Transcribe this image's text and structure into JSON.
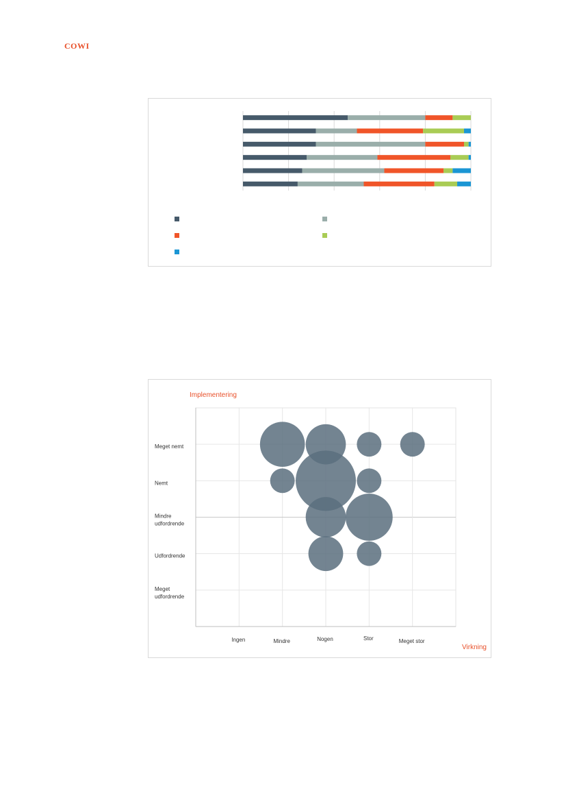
{
  "logo": {
    "text": "COWI",
    "color": "#e8502a"
  },
  "bar_chart": {
    "chart_data": {
      "type": "bar",
      "orientation": "horizontal",
      "stacked": true,
      "percent_stacked": true,
      "xlim": [
        0,
        100
      ],
      "grid": true,
      "legend_position": "bottom",
      "categories": [
        "",
        "",
        "",
        "",
        "",
        ""
      ],
      "series": [
        {
          "color": "#465a6a",
          "values": [
            46,
            32,
            32,
            28,
            26,
            24
          ]
        },
        {
          "color": "#9aaeaa",
          "values": [
            34,
            18,
            48,
            31,
            36,
            29
          ]
        },
        {
          "color": "#f05529",
          "values": [
            12,
            29,
            17,
            32,
            26,
            31
          ]
        },
        {
          "color": "#a9cc55",
          "values": [
            8,
            18,
            2,
            8,
            4,
            10
          ]
        },
        {
          "color": "#1b96d4",
          "values": [
            0,
            3,
            1,
            1,
            8,
            6
          ]
        }
      ]
    }
  },
  "bubble_chart": {
    "chart_data": {
      "type": "scatter",
      "bubble": true,
      "title": "Implementering",
      "xlabel": "Virkning",
      "x_categories": [
        "Ingen",
        "Mindre",
        "Nogen",
        "Stor",
        "Meget stor"
      ],
      "y_categories": [
        "Meget udfordrende",
        "Udfordrende",
        "Mindre udfordrende",
        "Nemt",
        "Meget nemt"
      ],
      "xlim": [
        0,
        6
      ],
      "ylim": [
        0,
        6
      ],
      "grid": true,
      "bubble_color": "#5b6e7e",
      "points": [
        {
          "x": 2,
          "y": 5,
          "size": 5
        },
        {
          "x": 3,
          "y": 5,
          "size": 4
        },
        {
          "x": 4,
          "y": 5,
          "size": 1.5
        },
        {
          "x": 5,
          "y": 5,
          "size": 1.5
        },
        {
          "x": 2,
          "y": 4,
          "size": 1.5
        },
        {
          "x": 3,
          "y": 4,
          "size": 9
        },
        {
          "x": 4,
          "y": 4,
          "size": 1.5
        },
        {
          "x": 3,
          "y": 3,
          "size": 4
        },
        {
          "x": 4,
          "y": 3,
          "size": 5.5
        },
        {
          "x": 3,
          "y": 2,
          "size": 3
        },
        {
          "x": 4,
          "y": 2,
          "size": 1.5
        }
      ]
    }
  },
  "colors": {
    "accent": "#e8502a",
    "grid": "#d9d9d9",
    "axis": "#bfbfbf"
  }
}
